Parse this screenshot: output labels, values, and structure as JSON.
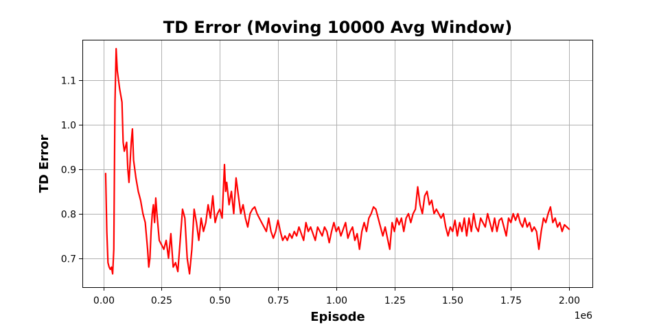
{
  "chart_data": {
    "type": "line",
    "title": "TD Error (Moving 10000 Avg Window)",
    "xlabel": "Episode",
    "ylabel": "TD Error",
    "x_offset_label": "1e6",
    "xlim": [
      -0.09,
      2.1
    ],
    "ylim": [
      0.635,
      1.19
    ],
    "x_ticks": [
      0.0,
      0.25,
      0.5,
      0.75,
      1.0,
      1.25,
      1.5,
      1.75,
      2.0
    ],
    "x_tick_labels": [
      "0.00",
      "0.25",
      "0.50",
      "0.75",
      "1.00",
      "1.25",
      "1.50",
      "1.75",
      "2.00"
    ],
    "y_ticks": [
      0.7,
      0.8,
      0.9,
      1.0,
      1.1
    ],
    "y_tick_labels": [
      "0.7",
      "0.8",
      "0.9",
      "1.0",
      "1.1"
    ],
    "grid": true,
    "series": [
      {
        "color": "#ff0000",
        "points": [
          [
            0.01,
            0.89
          ],
          [
            0.015,
            0.76
          ],
          [
            0.02,
            0.69
          ],
          [
            0.025,
            0.68
          ],
          [
            0.03,
            0.675
          ],
          [
            0.035,
            0.68
          ],
          [
            0.04,
            0.665
          ],
          [
            0.045,
            0.72
          ],
          [
            0.05,
            1.05
          ],
          [
            0.055,
            1.17
          ],
          [
            0.06,
            1.12
          ],
          [
            0.07,
            1.08
          ],
          [
            0.08,
            1.05
          ],
          [
            0.085,
            0.96
          ],
          [
            0.09,
            0.94
          ],
          [
            0.1,
            0.96
          ],
          [
            0.105,
            0.9
          ],
          [
            0.11,
            0.87
          ],
          [
            0.12,
            0.96
          ],
          [
            0.125,
            0.99
          ],
          [
            0.13,
            0.92
          ],
          [
            0.14,
            0.88
          ],
          [
            0.15,
            0.85
          ],
          [
            0.16,
            0.83
          ],
          [
            0.17,
            0.8
          ],
          [
            0.18,
            0.78
          ],
          [
            0.19,
            0.72
          ],
          [
            0.195,
            0.68
          ],
          [
            0.2,
            0.7
          ],
          [
            0.205,
            0.76
          ],
          [
            0.21,
            0.8
          ],
          [
            0.215,
            0.82
          ],
          [
            0.22,
            0.78
          ],
          [
            0.225,
            0.835
          ],
          [
            0.23,
            0.8
          ],
          [
            0.24,
            0.74
          ],
          [
            0.25,
            0.73
          ],
          [
            0.26,
            0.72
          ],
          [
            0.27,
            0.74
          ],
          [
            0.28,
            0.7
          ],
          [
            0.29,
            0.755
          ],
          [
            0.3,
            0.68
          ],
          [
            0.31,
            0.69
          ],
          [
            0.32,
            0.67
          ],
          [
            0.33,
            0.74
          ],
          [
            0.34,
            0.81
          ],
          [
            0.35,
            0.79
          ],
          [
            0.36,
            0.7
          ],
          [
            0.37,
            0.665
          ],
          [
            0.38,
            0.72
          ],
          [
            0.39,
            0.81
          ],
          [
            0.4,
            0.78
          ],
          [
            0.41,
            0.74
          ],
          [
            0.42,
            0.79
          ],
          [
            0.43,
            0.76
          ],
          [
            0.44,
            0.78
          ],
          [
            0.45,
            0.82
          ],
          [
            0.46,
            0.79
          ],
          [
            0.47,
            0.84
          ],
          [
            0.48,
            0.78
          ],
          [
            0.49,
            0.8
          ],
          [
            0.5,
            0.81
          ],
          [
            0.51,
            0.79
          ],
          [
            0.52,
            0.91
          ],
          [
            0.525,
            0.85
          ],
          [
            0.53,
            0.87
          ],
          [
            0.54,
            0.82
          ],
          [
            0.55,
            0.85
          ],
          [
            0.56,
            0.8
          ],
          [
            0.57,
            0.88
          ],
          [
            0.58,
            0.84
          ],
          [
            0.59,
            0.8
          ],
          [
            0.6,
            0.82
          ],
          [
            0.61,
            0.79
          ],
          [
            0.62,
            0.77
          ],
          [
            0.63,
            0.8
          ],
          [
            0.64,
            0.81
          ],
          [
            0.65,
            0.815
          ],
          [
            0.66,
            0.8
          ],
          [
            0.67,
            0.79
          ],
          [
            0.68,
            0.78
          ],
          [
            0.69,
            0.77
          ],
          [
            0.7,
            0.76
          ],
          [
            0.71,
            0.79
          ],
          [
            0.72,
            0.76
          ],
          [
            0.73,
            0.745
          ],
          [
            0.74,
            0.76
          ],
          [
            0.75,
            0.785
          ],
          [
            0.76,
            0.76
          ],
          [
            0.77,
            0.74
          ],
          [
            0.78,
            0.75
          ],
          [
            0.79,
            0.74
          ],
          [
            0.8,
            0.755
          ],
          [
            0.81,
            0.745
          ],
          [
            0.82,
            0.76
          ],
          [
            0.83,
            0.75
          ],
          [
            0.84,
            0.77
          ],
          [
            0.85,
            0.755
          ],
          [
            0.86,
            0.74
          ],
          [
            0.87,
            0.78
          ],
          [
            0.88,
            0.76
          ],
          [
            0.89,
            0.77
          ],
          [
            0.9,
            0.755
          ],
          [
            0.91,
            0.74
          ],
          [
            0.92,
            0.77
          ],
          [
            0.93,
            0.76
          ],
          [
            0.94,
            0.75
          ],
          [
            0.95,
            0.77
          ],
          [
            0.96,
            0.76
          ],
          [
            0.97,
            0.735
          ],
          [
            0.98,
            0.76
          ],
          [
            0.99,
            0.78
          ],
          [
            1.0,
            0.76
          ],
          [
            1.01,
            0.77
          ],
          [
            1.02,
            0.75
          ],
          [
            1.03,
            0.765
          ],
          [
            1.04,
            0.78
          ],
          [
            1.05,
            0.745
          ],
          [
            1.06,
            0.76
          ],
          [
            1.07,
            0.77
          ],
          [
            1.08,
            0.74
          ],
          [
            1.09,
            0.755
          ],
          [
            1.1,
            0.72
          ],
          [
            1.11,
            0.76
          ],
          [
            1.12,
            0.78
          ],
          [
            1.13,
            0.76
          ],
          [
            1.14,
            0.79
          ],
          [
            1.15,
            0.8
          ],
          [
            1.16,
            0.815
          ],
          [
            1.17,
            0.81
          ],
          [
            1.18,
            0.79
          ],
          [
            1.19,
            0.77
          ],
          [
            1.2,
            0.75
          ],
          [
            1.21,
            0.77
          ],
          [
            1.22,
            0.745
          ],
          [
            1.23,
            0.72
          ],
          [
            1.24,
            0.78
          ],
          [
            1.25,
            0.76
          ],
          [
            1.26,
            0.79
          ],
          [
            1.27,
            0.775
          ],
          [
            1.28,
            0.79
          ],
          [
            1.29,
            0.76
          ],
          [
            1.3,
            0.79
          ],
          [
            1.31,
            0.8
          ],
          [
            1.32,
            0.78
          ],
          [
            1.33,
            0.8
          ],
          [
            1.34,
            0.81
          ],
          [
            1.35,
            0.86
          ],
          [
            1.36,
            0.82
          ],
          [
            1.37,
            0.8
          ],
          [
            1.38,
            0.84
          ],
          [
            1.39,
            0.85
          ],
          [
            1.4,
            0.82
          ],
          [
            1.41,
            0.83
          ],
          [
            1.42,
            0.8
          ],
          [
            1.43,
            0.81
          ],
          [
            1.44,
            0.8
          ],
          [
            1.45,
            0.79
          ],
          [
            1.46,
            0.8
          ],
          [
            1.47,
            0.77
          ],
          [
            1.48,
            0.75
          ],
          [
            1.49,
            0.77
          ],
          [
            1.5,
            0.76
          ],
          [
            1.51,
            0.785
          ],
          [
            1.52,
            0.75
          ],
          [
            1.53,
            0.78
          ],
          [
            1.54,
            0.76
          ],
          [
            1.55,
            0.79
          ],
          [
            1.56,
            0.75
          ],
          [
            1.57,
            0.79
          ],
          [
            1.58,
            0.76
          ],
          [
            1.59,
            0.8
          ],
          [
            1.6,
            0.77
          ],
          [
            1.61,
            0.76
          ],
          [
            1.62,
            0.79
          ],
          [
            1.63,
            0.78
          ],
          [
            1.64,
            0.77
          ],
          [
            1.65,
            0.8
          ],
          [
            1.66,
            0.78
          ],
          [
            1.67,
            0.76
          ],
          [
            1.68,
            0.79
          ],
          [
            1.69,
            0.76
          ],
          [
            1.7,
            0.785
          ],
          [
            1.71,
            0.79
          ],
          [
            1.72,
            0.77
          ],
          [
            1.73,
            0.75
          ],
          [
            1.74,
            0.79
          ],
          [
            1.75,
            0.78
          ],
          [
            1.76,
            0.8
          ],
          [
            1.77,
            0.785
          ],
          [
            1.78,
            0.8
          ],
          [
            1.79,
            0.78
          ],
          [
            1.8,
            0.77
          ],
          [
            1.81,
            0.79
          ],
          [
            1.82,
            0.77
          ],
          [
            1.83,
            0.78
          ],
          [
            1.84,
            0.76
          ],
          [
            1.85,
            0.77
          ],
          [
            1.86,
            0.76
          ],
          [
            1.87,
            0.72
          ],
          [
            1.88,
            0.76
          ],
          [
            1.89,
            0.79
          ],
          [
            1.9,
            0.78
          ],
          [
            1.91,
            0.8
          ],
          [
            1.92,
            0.815
          ],
          [
            1.93,
            0.78
          ],
          [
            1.94,
            0.79
          ],
          [
            1.95,
            0.77
          ],
          [
            1.96,
            0.78
          ],
          [
            1.97,
            0.76
          ],
          [
            1.98,
            0.775
          ],
          [
            1.99,
            0.77
          ],
          [
            2.0,
            0.765
          ]
        ]
      }
    ]
  }
}
